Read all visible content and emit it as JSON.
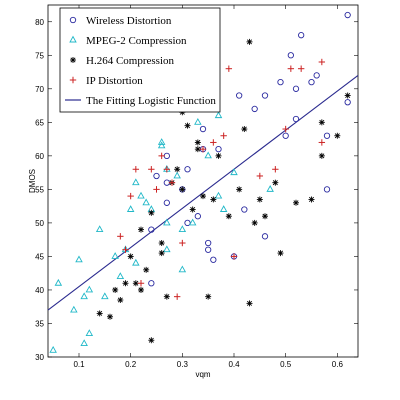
{
  "chart_data": {
    "type": "scatter",
    "xlabel": "vqm",
    "ylabel": "DMOS",
    "xlim": [
      0.04,
      0.64
    ],
    "ylim": [
      30,
      82.5
    ],
    "xticks": [
      "0.1",
      "0.2",
      "0.3",
      "0.4",
      "0.5",
      "0.6"
    ],
    "yticks": [
      "30",
      "35",
      "40",
      "45",
      "50",
      "55",
      "60",
      "65",
      "70",
      "75",
      "80"
    ],
    "grid": false,
    "legend_position": "top-left",
    "series": [
      {
        "name": "Wireless Distortion",
        "marker": "circle",
        "color": "#2a2aa0",
        "points": [
          [
            0.62,
            81
          ],
          [
            0.53,
            78
          ],
          [
            0.51,
            75
          ],
          [
            0.56,
            72
          ],
          [
            0.55,
            71
          ],
          [
            0.52,
            70
          ],
          [
            0.49,
            71
          ],
          [
            0.46,
            69
          ],
          [
            0.41,
            69
          ],
          [
            0.44,
            67
          ],
          [
            0.52,
            65.5
          ],
          [
            0.58,
            63
          ],
          [
            0.5,
            63
          ],
          [
            0.62,
            68
          ],
          [
            0.37,
            61
          ],
          [
            0.34,
            64
          ],
          [
            0.34,
            61
          ],
          [
            0.31,
            58
          ],
          [
            0.27,
            60
          ],
          [
            0.25,
            57
          ],
          [
            0.27,
            56
          ],
          [
            0.3,
            55
          ],
          [
            0.27,
            53
          ],
          [
            0.42,
            52
          ],
          [
            0.33,
            51
          ],
          [
            0.31,
            50
          ],
          [
            0.24,
            49
          ],
          [
            0.35,
            47
          ],
          [
            0.35,
            46
          ],
          [
            0.46,
            48
          ],
          [
            0.4,
            45
          ],
          [
            0.36,
            44.5
          ],
          [
            0.24,
            41
          ],
          [
            0.58,
            55
          ]
        ]
      },
      {
        "name": "MPEG-2 Compression",
        "marker": "triangle",
        "color": "#20b8c8",
        "points": [
          [
            0.05,
            31
          ],
          [
            0.11,
            32
          ],
          [
            0.12,
            33.5
          ],
          [
            0.09,
            37
          ],
          [
            0.12,
            40
          ],
          [
            0.15,
            39
          ],
          [
            0.11,
            39
          ],
          [
            0.06,
            41
          ],
          [
            0.14,
            49
          ],
          [
            0.1,
            44.5
          ],
          [
            0.17,
            45
          ],
          [
            0.19,
            46
          ],
          [
            0.18,
            42
          ],
          [
            0.21,
            44
          ],
          [
            0.2,
            52
          ],
          [
            0.22,
            54
          ],
          [
            0.23,
            53
          ],
          [
            0.21,
            56
          ],
          [
            0.24,
            52
          ],
          [
            0.27,
            58
          ],
          [
            0.29,
            57
          ],
          [
            0.26,
            62
          ],
          [
            0.26,
            61.5
          ],
          [
            0.3,
            49
          ],
          [
            0.27,
            46
          ],
          [
            0.3,
            43
          ],
          [
            0.32,
            50
          ],
          [
            0.33,
            65
          ],
          [
            0.37,
            66
          ],
          [
            0.38,
            52
          ],
          [
            0.37,
            54
          ],
          [
            0.35,
            60
          ],
          [
            0.4,
            57.5
          ],
          [
            0.47,
            55
          ],
          [
            0.27,
            50
          ]
        ]
      },
      {
        "name": "H.264 Compression",
        "marker": "star",
        "color": "#000000",
        "points": [
          [
            0.14,
            36.5
          ],
          [
            0.16,
            36
          ],
          [
            0.17,
            40
          ],
          [
            0.18,
            38.5
          ],
          [
            0.19,
            41
          ],
          [
            0.21,
            41
          ],
          [
            0.22,
            40
          ],
          [
            0.23,
            43
          ],
          [
            0.2,
            45
          ],
          [
            0.24,
            32.5
          ],
          [
            0.26,
            45.5
          ],
          [
            0.26,
            47
          ],
          [
            0.22,
            49
          ],
          [
            0.24,
            51.5
          ],
          [
            0.27,
            39
          ],
          [
            0.3,
            55
          ],
          [
            0.29,
            58
          ],
          [
            0.28,
            56
          ],
          [
            0.3,
            66.5
          ],
          [
            0.31,
            64.5
          ],
          [
            0.32,
            52
          ],
          [
            0.33,
            62
          ],
          [
            0.33,
            61
          ],
          [
            0.34,
            54
          ],
          [
            0.36,
            53.5
          ],
          [
            0.37,
            60
          ],
          [
            0.39,
            51
          ],
          [
            0.41,
            55
          ],
          [
            0.42,
            64
          ],
          [
            0.43,
            77
          ],
          [
            0.43,
            38
          ],
          [
            0.44,
            50
          ],
          [
            0.45,
            53.5
          ],
          [
            0.48,
            56
          ],
          [
            0.49,
            45.5
          ],
          [
            0.52,
            53
          ],
          [
            0.55,
            53.5
          ],
          [
            0.57,
            60
          ],
          [
            0.57,
            65
          ],
          [
            0.6,
            63
          ],
          [
            0.62,
            69
          ],
          [
            0.35,
            39
          ],
          [
            0.46,
            51
          ]
        ]
      },
      {
        "name": "IP Distortion",
        "marker": "plus",
        "color": "#cc2222",
        "points": [
          [
            0.18,
            48
          ],
          [
            0.19,
            46
          ],
          [
            0.2,
            54
          ],
          [
            0.21,
            58
          ],
          [
            0.24,
            58
          ],
          [
            0.25,
            55
          ],
          [
            0.26,
            60
          ],
          [
            0.27,
            58
          ],
          [
            0.28,
            56
          ],
          [
            0.3,
            47
          ],
          [
            0.29,
            39
          ],
          [
            0.31,
            67
          ],
          [
            0.33,
            68
          ],
          [
            0.34,
            61
          ],
          [
            0.36,
            62
          ],
          [
            0.38,
            63
          ],
          [
            0.39,
            73
          ],
          [
            0.4,
            45
          ],
          [
            0.45,
            57
          ],
          [
            0.48,
            58
          ],
          [
            0.5,
            64
          ],
          [
            0.51,
            73
          ],
          [
            0.53,
            73
          ],
          [
            0.57,
            74
          ],
          [
            0.57,
            62
          ],
          [
            0.22,
            41
          ]
        ]
      }
    ],
    "fit_line": {
      "name": "The Fitting Logistic Function",
      "color": "#2b2b8f",
      "points": [
        [
          0.04,
          37
        ],
        [
          0.64,
          72
        ]
      ]
    }
  }
}
